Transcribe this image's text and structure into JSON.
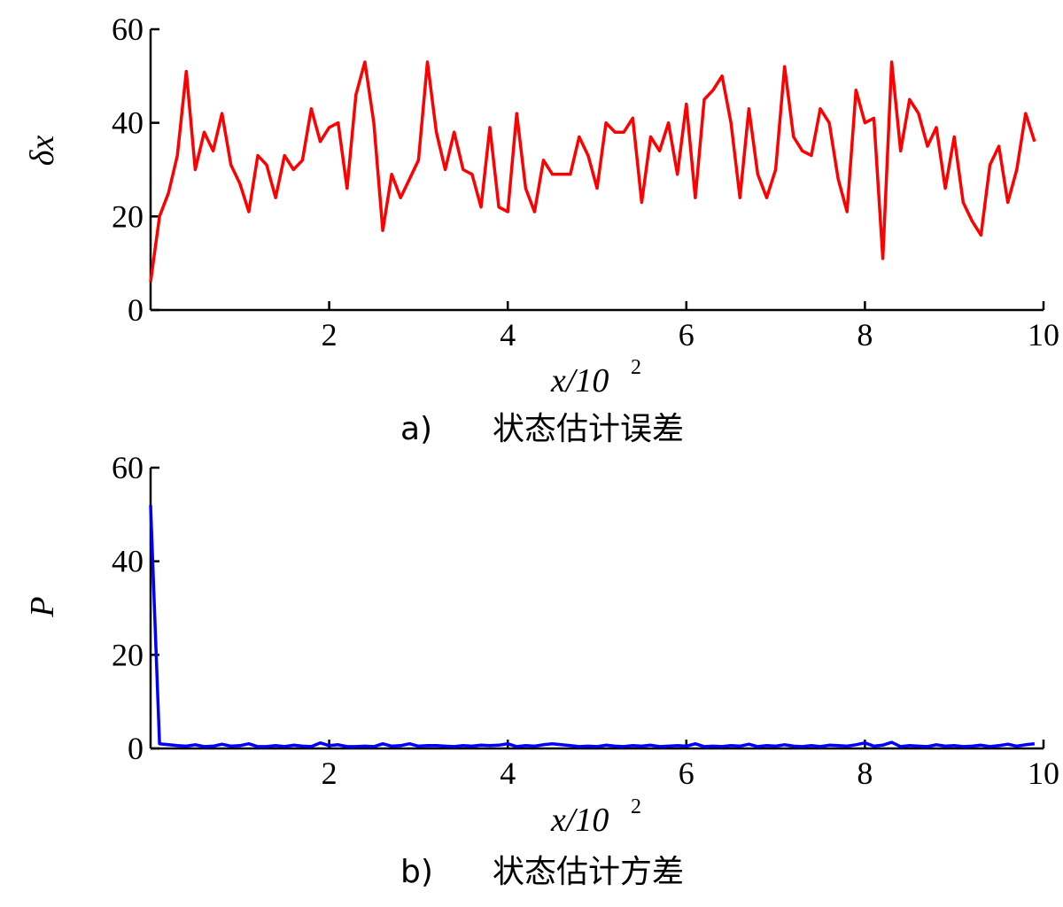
{
  "chart_data": [
    {
      "type": "line",
      "caption_prefix": "a)",
      "caption_text": "状态估计误差",
      "ylabel": "δx",
      "xlabel_main": "x/10",
      "xlabel_exp": "2",
      "xlim": [
        0,
        10
      ],
      "ylim": [
        0,
        60
      ],
      "xticks": [
        "2",
        "4",
        "6",
        "8",
        "10"
      ],
      "xtick_values": [
        2,
        4,
        6,
        8,
        10
      ],
      "yticks": [
        "0",
        "20",
        "40",
        "60"
      ],
      "ytick_values": [
        0,
        20,
        40,
        60
      ],
      "color": "#ff0000",
      "series": [
        {
          "x": [
            0.0,
            0.1,
            0.2,
            0.3,
            0.4,
            0.5,
            0.6,
            0.7,
            0.8,
            0.9,
            1.0,
            1.1,
            1.2,
            1.3,
            1.4,
            1.5,
            1.6,
            1.7,
            1.8,
            1.9,
            2.0,
            2.1,
            2.2,
            2.3,
            2.4,
            2.5,
            2.6,
            2.7,
            2.8,
            2.9,
            3.0,
            3.1,
            3.2,
            3.3,
            3.4,
            3.5,
            3.6,
            3.7,
            3.8,
            3.9,
            4.0,
            4.1,
            4.2,
            4.3,
            4.4,
            4.5,
            4.6,
            4.7,
            4.8,
            4.9,
            5.0,
            5.1,
            5.2,
            5.3,
            5.4,
            5.5,
            5.6,
            5.7,
            5.8,
            5.9,
            6.0,
            6.1,
            6.2,
            6.3,
            6.4,
            6.5,
            6.6,
            6.7,
            6.8,
            6.9,
            7.0,
            7.1,
            7.2,
            7.3,
            7.4,
            7.5,
            7.6,
            7.7,
            7.8,
            7.9,
            8.0,
            8.1,
            8.2,
            8.3,
            8.4,
            8.5,
            8.6,
            8.7,
            8.8,
            8.9,
            9.0,
            9.1,
            9.2,
            9.3,
            9.4,
            9.5,
            9.6,
            9.7,
            9.8,
            9.9
          ],
          "y": [
            6,
            20,
            25,
            33,
            51,
            30,
            38,
            34,
            42,
            31,
            27,
            21,
            33,
            31,
            24,
            33,
            30,
            32,
            43,
            36,
            39,
            40,
            26,
            46,
            53,
            40,
            17,
            29,
            24,
            28,
            32,
            53,
            38,
            30,
            38,
            30,
            29,
            22,
            39,
            22,
            21,
            42,
            26,
            21,
            32,
            29,
            29,
            29,
            37,
            33,
            26,
            40,
            38,
            38,
            41,
            23,
            37,
            34,
            40,
            29,
            44,
            24,
            45,
            47,
            50,
            40,
            24,
            43,
            29,
            24,
            30,
            52,
            37,
            34,
            33,
            43,
            40,
            28,
            21,
            47,
            40,
            41,
            11,
            53,
            34,
            45,
            42,
            35,
            39,
            26,
            37,
            23,
            19,
            16,
            31,
            35,
            23,
            30,
            42,
            36
          ]
        }
      ]
    },
    {
      "type": "line",
      "caption_prefix": "b)",
      "caption_text": "状态估计方差",
      "ylabel": "P",
      "xlabel_main": "x/10",
      "xlabel_exp": "2",
      "xlim": [
        0,
        10
      ],
      "ylim": [
        0,
        60
      ],
      "xticks": [
        "2",
        "4",
        "6",
        "8",
        "10"
      ],
      "xtick_values": [
        2,
        4,
        6,
        8,
        10
      ],
      "yticks": [
        "0",
        "20",
        "40",
        "60"
      ],
      "ytick_values": [
        0,
        20,
        40,
        60
      ],
      "color": "#0000ff",
      "series": [
        {
          "x": [
            0.0,
            0.1,
            0.2,
            0.3,
            0.4,
            0.5,
            0.6,
            0.7,
            0.8,
            0.9,
            1.0,
            1.1,
            1.2,
            1.3,
            1.4,
            1.5,
            1.6,
            1.7,
            1.8,
            1.9,
            2.0,
            2.1,
            2.2,
            2.3,
            2.4,
            2.5,
            2.6,
            2.7,
            2.8,
            2.9,
            3.0,
            3.1,
            3.2,
            3.3,
            3.4,
            3.5,
            3.6,
            3.7,
            3.8,
            3.9,
            4.0,
            4.1,
            4.2,
            4.3,
            4.4,
            4.5,
            4.6,
            4.7,
            4.8,
            4.9,
            5.0,
            5.1,
            5.2,
            5.3,
            5.4,
            5.5,
            5.6,
            5.7,
            5.8,
            5.9,
            6.0,
            6.1,
            6.2,
            6.3,
            6.4,
            6.5,
            6.6,
            6.7,
            6.8,
            6.9,
            7.0,
            7.1,
            7.2,
            7.3,
            7.4,
            7.5,
            7.6,
            7.7,
            7.8,
            7.9,
            8.0,
            8.1,
            8.2,
            8.3,
            8.4,
            8.5,
            8.6,
            8.7,
            8.8,
            8.9,
            9.0,
            9.1,
            9.2,
            9.3,
            9.4,
            9.5,
            9.6,
            9.7,
            9.8,
            9.9
          ],
          "y": [
            52,
            1,
            0.8,
            0.6,
            0.5,
            0.8,
            0.4,
            0.5,
            0.9,
            0.5,
            0.6,
            1.0,
            0.4,
            0.4,
            0.6,
            0.4,
            0.7,
            0.5,
            0.4,
            1.2,
            0.6,
            0.8,
            0.4,
            0.4,
            0.5,
            0.4,
            1.0,
            0.5,
            0.6,
            1.0,
            0.5,
            0.6,
            0.6,
            0.5,
            0.4,
            0.6,
            0.5,
            0.7,
            0.6,
            0.7,
            1.0,
            0.4,
            0.6,
            0.5,
            0.8,
            1.0,
            0.8,
            0.6,
            0.4,
            0.5,
            0.4,
            0.7,
            0.5,
            0.4,
            0.6,
            0.5,
            0.7,
            0.4,
            0.5,
            0.6,
            0.5,
            1.0,
            0.4,
            0.5,
            0.4,
            0.6,
            0.5,
            0.9,
            0.4,
            0.6,
            0.5,
            0.8,
            0.5,
            0.4,
            0.6,
            0.4,
            0.7,
            0.6,
            0.5,
            0.8,
            1.2,
            0.5,
            0.7,
            1.3,
            0.4,
            0.6,
            0.5,
            0.4,
            0.8,
            0.5,
            0.6,
            0.4,
            0.5,
            0.7,
            0.4,
            0.6,
            0.9,
            0.5,
            0.8,
            1.0
          ]
        }
      ]
    }
  ]
}
